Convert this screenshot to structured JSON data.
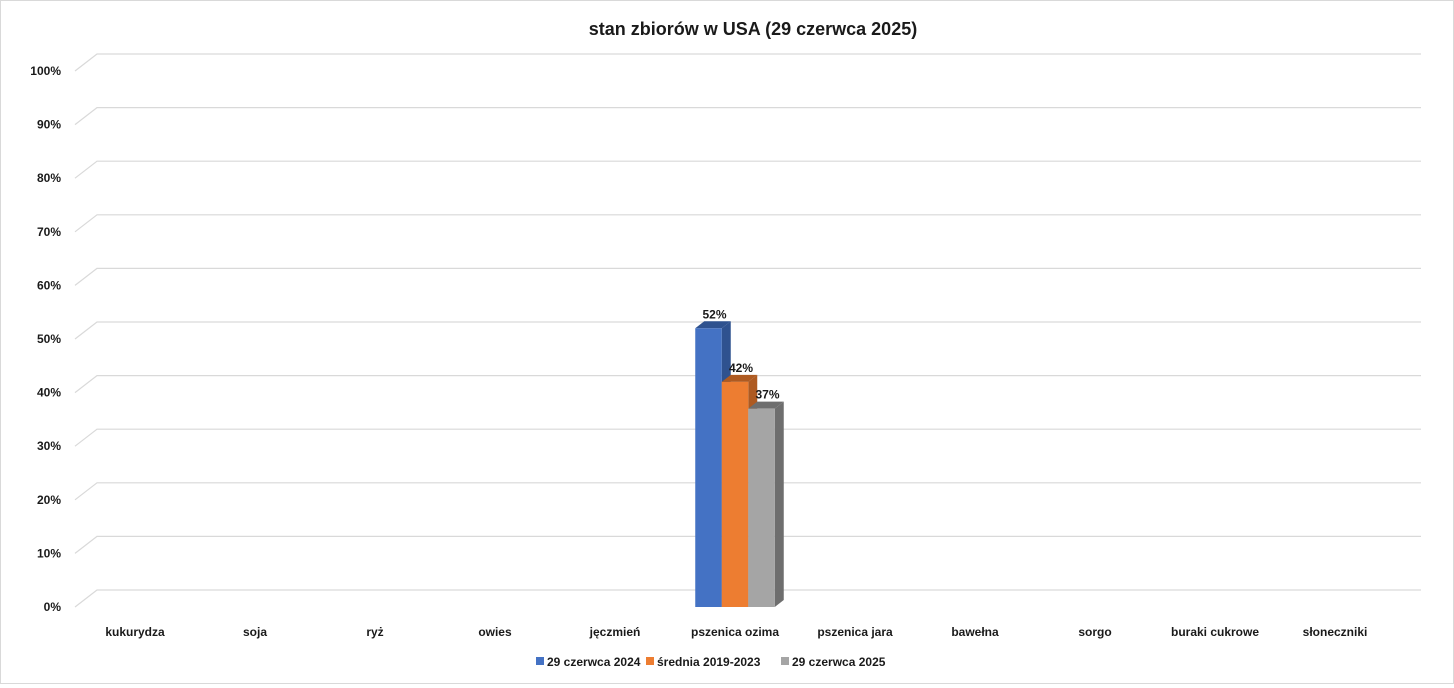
{
  "chart_data": {
    "type": "bar",
    "title": "stan zbiorów w USA (29 czerwca 2025)",
    "xlabel": "",
    "ylabel": "",
    "ylim": [
      0,
      100
    ],
    "yticks": [
      "0%",
      "10%",
      "20%",
      "30%",
      "40%",
      "50%",
      "60%",
      "70%",
      "80%",
      "90%",
      "100%"
    ],
    "categories": [
      "kukurydza",
      "soja",
      "ryż",
      "owies",
      "jęczmień",
      "pszenica ozima",
      "pszenica jara",
      "bawełna",
      "sorgo",
      "buraki cukrowe",
      "słoneczniki"
    ],
    "series": [
      {
        "name": "29 czerwca 2024",
        "color": "#4472c4",
        "side": "#2f528f",
        "values": [
          null,
          null,
          null,
          null,
          null,
          52,
          null,
          null,
          null,
          null,
          null
        ]
      },
      {
        "name": "średnia 2019-2023",
        "color": "#ed7d31",
        "side": "#ae5a21",
        "values": [
          null,
          null,
          null,
          null,
          null,
          42,
          null,
          null,
          null,
          null,
          null
        ]
      },
      {
        "name": "29 czerwca 2025",
        "color": "#a5a5a5",
        "side": "#6e6e6e",
        "values": [
          null,
          null,
          null,
          null,
          null,
          37,
          null,
          null,
          null,
          null,
          null
        ]
      }
    ],
    "data_labels": [
      {
        "category": "pszenica ozima",
        "series": "29 czerwca 2024",
        "text": "52%"
      },
      {
        "category": "pszenica ozima",
        "series": "średnia 2019-2023",
        "text": "42%"
      },
      {
        "category": "pszenica ozima",
        "series": "29 czerwca 2025",
        "text": "37%"
      }
    ],
    "grid": true,
    "legend": "bottom"
  }
}
